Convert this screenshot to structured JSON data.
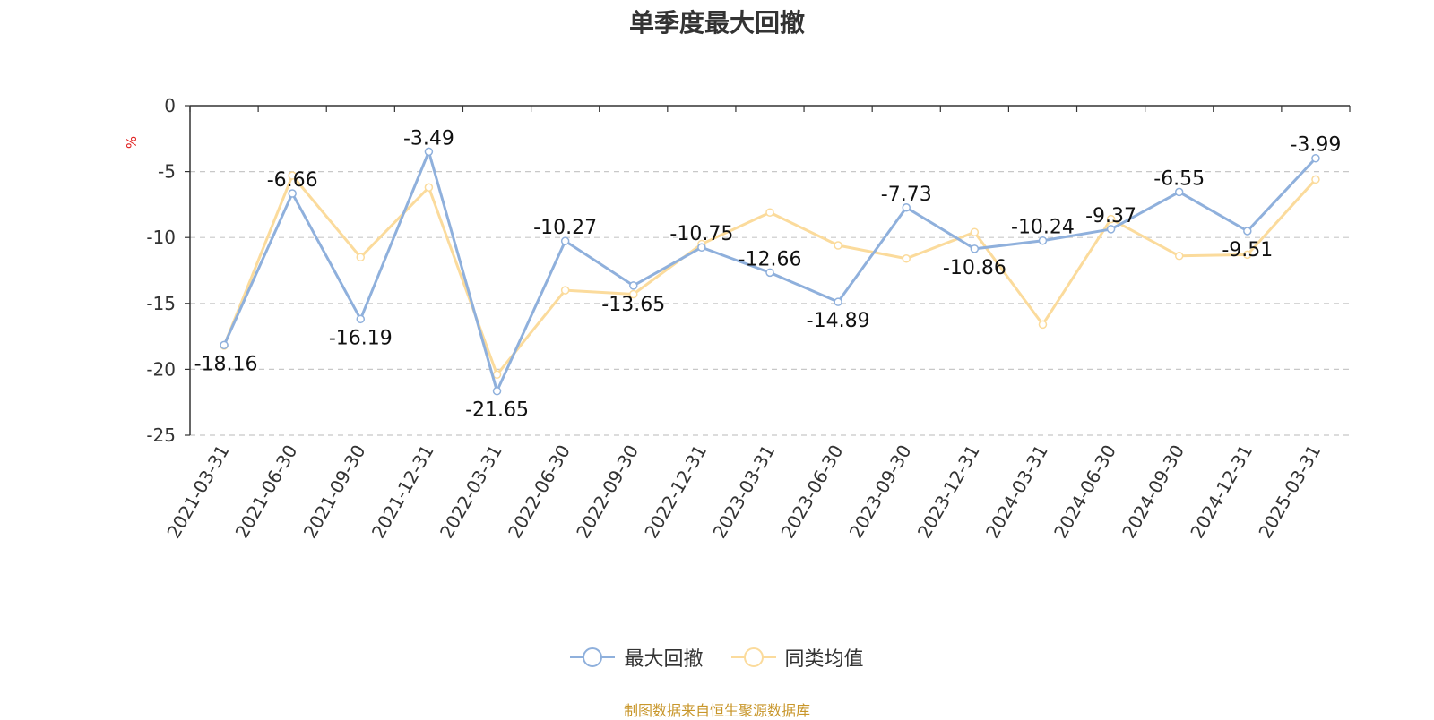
{
  "chart_data": {
    "type": "line",
    "title": "单季度最大回撤",
    "ylabel": "%",
    "ylim": [
      -25,
      0
    ],
    "yticks": [
      0,
      -5,
      -10,
      -15,
      -20,
      -25
    ],
    "categories": [
      "2021-03-31",
      "2021-06-30",
      "2021-09-30",
      "2021-12-31",
      "2022-03-31",
      "2022-06-30",
      "2022-09-30",
      "2022-12-31",
      "2023-03-31",
      "2023-06-30",
      "2023-09-30",
      "2023-12-31",
      "2024-03-31",
      "2024-06-30",
      "2024-09-30",
      "2024-12-31",
      "2025-03-31"
    ],
    "series": [
      {
        "name": "最大回撤",
        "color": "#8fb0dc",
        "labeled": true,
        "values": [
          -18.16,
          -6.66,
          -16.19,
          -3.49,
          -21.65,
          -10.27,
          -13.65,
          -10.75,
          -12.66,
          -14.89,
          -7.73,
          -10.86,
          -10.24,
          -9.37,
          -6.55,
          -9.51,
          -3.99
        ]
      },
      {
        "name": "同类均值",
        "color": "#fbdb9c",
        "labeled": false,
        "values": [
          -18.2,
          -5.3,
          -11.5,
          -6.2,
          -20.4,
          -14.0,
          -14.3,
          -10.5,
          -8.1,
          -10.6,
          -11.6,
          -9.6,
          -16.6,
          -8.6,
          -11.4,
          -11.3,
          -5.6
        ]
      }
    ],
    "grid": true,
    "legend_position": "bottom-center"
  },
  "legend": {
    "items": [
      {
        "label": "最大回撤",
        "color": "#8fb0dc"
      },
      {
        "label": "同类均值",
        "color": "#fbdb9c"
      }
    ]
  },
  "source_note": "制图数据来自恒生聚源数据库"
}
